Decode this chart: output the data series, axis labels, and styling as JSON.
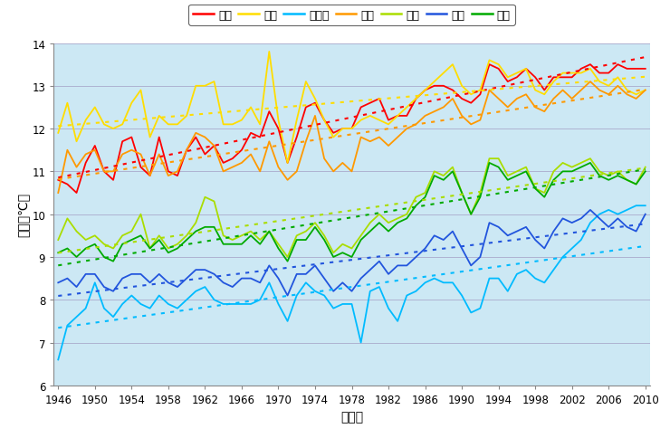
{
  "xlabel": "（年）",
  "ylabel": "気温（℃）",
  "years_start": 1946,
  "years_end": 2010,
  "background_color": "#cce8f4",
  "plot_bg": "#cce8f4",
  "series": [
    {
      "name": "東京",
      "color": "#ff0000",
      "values": [
        10.8,
        10.7,
        10.5,
        11.2,
        11.6,
        11.0,
        10.8,
        11.7,
        11.8,
        11.1,
        10.9,
        11.8,
        11.0,
        10.9,
        11.5,
        11.8,
        11.4,
        11.6,
        11.2,
        11.3,
        11.5,
        11.9,
        11.8,
        12.4,
        12.0,
        11.2,
        11.8,
        12.5,
        12.6,
        12.2,
        11.9,
        12.0,
        12.0,
        12.5,
        12.6,
        12.7,
        12.2,
        12.3,
        12.3,
        12.7,
        12.9,
        13.0,
        13.0,
        12.9,
        12.7,
        12.6,
        12.8,
        13.5,
        13.4,
        13.1,
        13.2,
        13.4,
        13.2,
        12.9,
        13.2,
        13.2,
        13.2,
        13.4,
        13.5,
        13.3,
        13.3,
        13.5,
        13.4,
        13.4,
        13.4
      ]
    },
    {
      "name": "銀子",
      "color": "#ffdd00",
      "values": [
        11.9,
        12.6,
        11.7,
        12.2,
        12.5,
        12.1,
        12.0,
        12.1,
        12.6,
        12.9,
        11.8,
        12.3,
        12.1,
        12.1,
        12.3,
        13.0,
        13.0,
        13.1,
        12.1,
        12.1,
        12.2,
        12.5,
        12.1,
        13.8,
        12.2,
        11.2,
        12.2,
        13.1,
        12.7,
        12.2,
        11.8,
        12.0,
        12.0,
        12.2,
        12.3,
        12.2,
        12.1,
        12.3,
        12.5,
        12.7,
        12.9,
        13.1,
        13.3,
        13.5,
        13.0,
        12.8,
        12.9,
        13.6,
        13.5,
        13.2,
        13.3,
        13.4,
        12.9,
        12.8,
        13.1,
        13.3,
        13.3,
        13.3,
        13.4,
        13.1,
        13.0,
        13.2,
        12.9,
        12.8,
        12.9
      ]
    },
    {
      "name": "宇都宮",
      "color": "#00bbff",
      "values": [
        6.6,
        7.4,
        7.6,
        7.8,
        8.4,
        7.8,
        7.6,
        7.9,
        8.1,
        7.9,
        7.8,
        8.1,
        7.9,
        7.8,
        8.0,
        8.2,
        8.3,
        8.0,
        7.9,
        7.9,
        7.9,
        7.9,
        8.0,
        8.4,
        7.9,
        7.5,
        8.1,
        8.4,
        8.2,
        8.1,
        7.8,
        7.9,
        7.9,
        7.0,
        8.2,
        8.3,
        7.8,
        7.5,
        8.1,
        8.2,
        8.4,
        8.5,
        8.4,
        8.4,
        8.1,
        7.7,
        7.8,
        8.5,
        8.5,
        8.2,
        8.6,
        8.7,
        8.5,
        8.4,
        8.7,
        9.0,
        9.2,
        9.4,
        9.8,
        10.0,
        10.1,
        10.0,
        10.1,
        10.2,
        10.2
      ]
    },
    {
      "name": "横浜",
      "color": "#ff9900",
      "values": [
        10.5,
        11.5,
        11.1,
        11.4,
        11.5,
        11.0,
        11.0,
        11.4,
        11.5,
        11.4,
        10.9,
        11.4,
        10.9,
        11.0,
        11.5,
        11.9,
        11.8,
        11.6,
        11.0,
        11.1,
        11.2,
        11.4,
        11.0,
        11.7,
        11.1,
        10.8,
        11.0,
        11.7,
        12.3,
        11.3,
        11.0,
        11.2,
        11.0,
        11.8,
        11.7,
        11.8,
        11.6,
        11.8,
        12.0,
        12.1,
        12.3,
        12.4,
        12.5,
        12.7,
        12.3,
        12.1,
        12.2,
        12.9,
        12.7,
        12.5,
        12.7,
        12.8,
        12.5,
        12.4,
        12.7,
        12.9,
        12.7,
        12.9,
        13.1,
        12.9,
        12.8,
        13.0,
        12.8,
        12.7,
        12.9
      ]
    },
    {
      "name": "熊谷",
      "color": "#aadd00",
      "values": [
        9.4,
        9.9,
        9.6,
        9.4,
        9.5,
        9.3,
        9.2,
        9.5,
        9.6,
        10.0,
        9.2,
        9.5,
        9.2,
        9.3,
        9.5,
        9.8,
        10.4,
        10.3,
        9.5,
        9.4,
        9.5,
        9.6,
        9.4,
        9.6,
        9.3,
        9.0,
        9.5,
        9.6,
        9.8,
        9.5,
        9.1,
        9.3,
        9.2,
        9.5,
        9.8,
        10.0,
        9.8,
        9.9,
        10.0,
        10.4,
        10.5,
        11.0,
        10.9,
        11.1,
        10.5,
        10.0,
        10.5,
        11.3,
        11.3,
        10.9,
        11.0,
        11.1,
        10.6,
        10.5,
        11.0,
        11.2,
        11.1,
        11.2,
        11.3,
        11.0,
        10.9,
        11.0,
        10.8,
        10.7,
        11.1
      ]
    },
    {
      "name": "水戸",
      "color": "#2255dd",
      "values": [
        8.4,
        8.5,
        8.3,
        8.6,
        8.6,
        8.3,
        8.2,
        8.5,
        8.6,
        8.6,
        8.4,
        8.6,
        8.4,
        8.3,
        8.5,
        8.7,
        8.7,
        8.6,
        8.4,
        8.3,
        8.5,
        8.5,
        8.4,
        8.8,
        8.5,
        8.1,
        8.6,
        8.6,
        8.8,
        8.5,
        8.2,
        8.4,
        8.2,
        8.5,
        8.7,
        8.9,
        8.6,
        8.8,
        8.8,
        9.0,
        9.2,
        9.5,
        9.4,
        9.6,
        9.2,
        8.8,
        9.0,
        9.8,
        9.7,
        9.5,
        9.6,
        9.7,
        9.4,
        9.2,
        9.6,
        9.9,
        9.8,
        9.9,
        10.1,
        9.9,
        9.7,
        9.9,
        9.7,
        9.6,
        10.0
      ]
    },
    {
      "name": "前橋",
      "color": "#00aa00",
      "values": [
        9.1,
        9.2,
        9.0,
        9.2,
        9.3,
        9.0,
        8.9,
        9.3,
        9.4,
        9.5,
        9.2,
        9.4,
        9.1,
        9.2,
        9.4,
        9.6,
        9.7,
        9.7,
        9.3,
        9.3,
        9.3,
        9.5,
        9.3,
        9.6,
        9.2,
        8.9,
        9.4,
        9.4,
        9.7,
        9.4,
        9.0,
        9.1,
        9.0,
        9.4,
        9.6,
        9.8,
        9.6,
        9.8,
        9.9,
        10.2,
        10.4,
        10.9,
        10.8,
        11.0,
        10.5,
        10.0,
        10.4,
        11.2,
        11.1,
        10.8,
        10.9,
        11.0,
        10.6,
        10.4,
        10.8,
        11.0,
        11.0,
        11.1,
        11.2,
        10.9,
        10.8,
        10.9,
        10.8,
        10.7,
        11.0
      ]
    }
  ],
  "ylim": [
    6,
    14
  ],
  "yticks": [
    6,
    7,
    8,
    9,
    10,
    11,
    12,
    13,
    14
  ],
  "xticks": [
    1946,
    1950,
    1954,
    1958,
    1962,
    1966,
    1970,
    1974,
    1978,
    1982,
    1986,
    1990,
    1994,
    1998,
    2002,
    2006,
    2010
  ]
}
